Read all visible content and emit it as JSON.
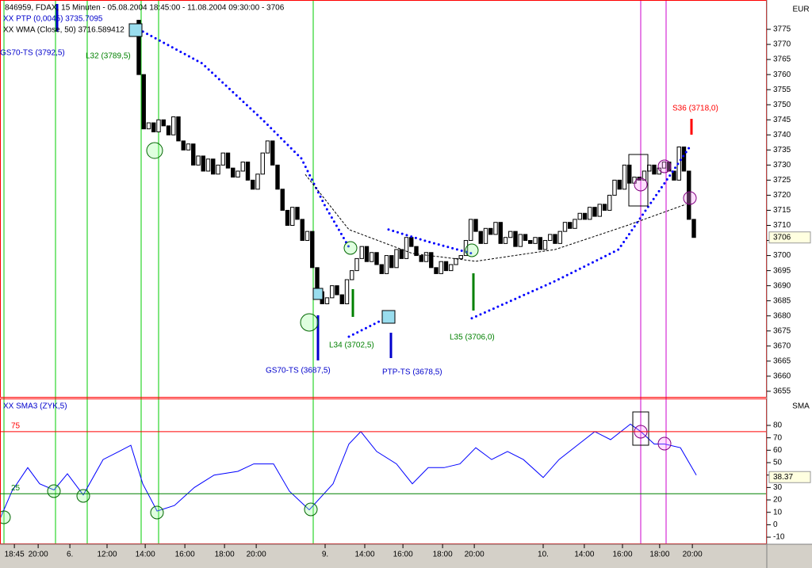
{
  "chart_data": [
    {
      "type": "candlestick",
      "title": "846959, FDAX, 15 Minuten - 05.08.2004 18:45:00 - 11.08.2004 09:30:00 - 3706",
      "legend": [
        {
          "text": "XX PTP (0,0045) 3735.7095",
          "color": "#0000cc"
        },
        {
          "text": "XX WMA (Close, 50) 3716.589412",
          "color": "#000000"
        }
      ],
      "axis_label": "EUR",
      "x": [
        28,
        29,
        30,
        31,
        32,
        33,
        34,
        35,
        36,
        37,
        38,
        39,
        40,
        41,
        42,
        43,
        44,
        45,
        46,
        47,
        48,
        49,
        50,
        51,
        52,
        53,
        54,
        55,
        56,
        57,
        58,
        59,
        60,
        61,
        62,
        63,
        64,
        65,
        66,
        67,
        68,
        69,
        70,
        71,
        72,
        73,
        74,
        75,
        76,
        77,
        78,
        79,
        80,
        81,
        82,
        83,
        84,
        85,
        86,
        87,
        88,
        89,
        90,
        91,
        92,
        93,
        94,
        95,
        96,
        97,
        98,
        99,
        100,
        101,
        102,
        103,
        104,
        105,
        106,
        107,
        108,
        109,
        110,
        111,
        112,
        113,
        114,
        115,
        116,
        117,
        118,
        119,
        120,
        121,
        122,
        123,
        124,
        125,
        126,
        127,
        128,
        129,
        130,
        131,
        132,
        133,
        134,
        135,
        136,
        137,
        138,
        139,
        140
      ],
      "open": [
        3778,
        3760,
        3742,
        3744,
        3741,
        3745,
        3743,
        3740,
        3746,
        3738,
        3735,
        3737,
        3730,
        3733,
        3728,
        3732,
        3727,
        3730,
        3734,
        3729,
        3726,
        3728,
        3731,
        3725,
        3722,
        3727,
        3734,
        3738,
        3730,
        3722,
        3715,
        3710,
        3716,
        3712,
        3705,
        3708,
        3696,
        3688,
        3684,
        3686,
        3690,
        3687,
        3684,
        3692,
        3695,
        3699,
        3703,
        3698,
        3701,
        3697,
        3694,
        3700,
        3696,
        3702,
        3699,
        3706,
        3703,
        3700,
        3698,
        3701,
        3696,
        3694,
        3698,
        3695,
        3697,
        3699,
        3700,
        3705,
        3712,
        3708,
        3704,
        3709,
        3707,
        3711,
        3704,
        3706,
        3708,
        3703,
        3707,
        3705,
        3704,
        3706,
        3702,
        3705,
        3707,
        3704,
        3708,
        3711,
        3709,
        3712,
        3714,
        3712,
        3716,
        3713,
        3717,
        3715,
        3720,
        3725,
        3722,
        3730,
        3724,
        3726,
        3725,
        3728,
        3730,
        3727,
        3729,
        3731,
        3728,
        3725,
        3736,
        3728,
        3712
      ],
      "close": [
        3760,
        3742,
        3744,
        3741,
        3745,
        3743,
        3740,
        3746,
        3738,
        3735,
        3737,
        3730,
        3733,
        3728,
        3732,
        3727,
        3730,
        3734,
        3729,
        3726,
        3728,
        3731,
        3725,
        3722,
        3727,
        3734,
        3738,
        3730,
        3722,
        3715,
        3710,
        3716,
        3712,
        3705,
        3708,
        3696,
        3688,
        3684,
        3686,
        3690,
        3687,
        3684,
        3692,
        3695,
        3699,
        3703,
        3698,
        3701,
        3697,
        3694,
        3700,
        3696,
        3702,
        3699,
        3706,
        3703,
        3700,
        3698,
        3701,
        3696,
        3694,
        3698,
        3695,
        3697,
        3699,
        3700,
        3705,
        3712,
        3708,
        3704,
        3709,
        3707,
        3711,
        3704,
        3706,
        3708,
        3703,
        3707,
        3705,
        3704,
        3706,
        3702,
        3705,
        3707,
        3704,
        3708,
        3711,
        3709,
        3712,
        3714,
        3712,
        3716,
        3713,
        3717,
        3715,
        3720,
        3725,
        3722,
        3730,
        3724,
        3726,
        3725,
        3728,
        3730,
        3727,
        3729,
        3731,
        3728,
        3725,
        3736,
        3728,
        3712,
        3706
      ],
      "series": [
        {
          "name": "PTP",
          "color": "#0000ff",
          "style": "dotted",
          "x": [
            28,
            40.8,
            52.8,
            60.8,
            65.6,
            70.4,
            null,
            70.4,
            78.4,
            null,
            78.4,
            86.4,
            95.2,
            null,
            95.2,
            112,
            124.8,
            139.2
          ],
          "values": [
            3775,
            3763.7,
            3745.3,
            3732.2,
            3716.4,
            3702.8,
            null,
            3673.1,
            3679.7,
            null,
            3708.6,
            3704.6,
            3700.7,
            null,
            3679.2,
            3691.5,
            3702.0,
            3736.1
          ]
        },
        {
          "name": "WMA",
          "color": "#000000",
          "style": "dashed",
          "x": [
            61.6,
            70.4,
            83.2,
            96,
            112,
            126.4,
            138.4
          ],
          "values": [
            3726.9,
            3708.6,
            3700.7,
            3698.1,
            3702.0,
            3709.9,
            3717.0
          ]
        }
      ],
      "annotations": [
        {
          "text": "GS70-TS (3792,5)",
          "color": "#0000cc"
        },
        {
          "text": "L32 (3789,5)",
          "color": "#008000"
        },
        {
          "text": "S36 (3718,0)",
          "color": "#ff0000"
        },
        {
          "text": "L34 (3702,5)",
          "color": "#008000"
        },
        {
          "text": "GS70-TS (3687,5)",
          "color": "#0000cc"
        },
        {
          "text": "PTP-TS (3678,5)",
          "color": "#0000cc"
        },
        {
          "text": "L35 (3706,0)",
          "color": "#008000"
        }
      ],
      "last_price": 3706,
      "xlim": [
        0,
        154.4
      ],
      "ylim": [
        3653.4,
        3784.2
      ],
      "yticks": [
        3655,
        3660,
        3665,
        3670,
        3675,
        3680,
        3685,
        3690,
        3695,
        3700,
        3705,
        3710,
        3715,
        3720,
        3725,
        3730,
        3735,
        3740,
        3745,
        3750,
        3755,
        3760,
        3765,
        3770,
        3775
      ]
    },
    {
      "type": "line",
      "title": "XX  SMA3 (ZYK,5)",
      "axis_label": "SMA",
      "series": [
        {
          "name": "SMA3",
          "color": "#0000ff",
          "x": [
            0,
            2.4,
            5.6,
            8,
            10.9,
            13.6,
            16.8,
            20.8,
            24,
            26.4,
            28.8,
            31.7,
            35.2,
            39.2,
            43.2,
            48,
            51.2,
            55.2,
            58.4,
            62.4,
            67.2,
            70.4,
            72.8,
            76,
            80,
            83.2,
            86.4,
            89.6,
            92.8,
            96,
            99.2,
            102.4,
            105.6,
            109.6,
            112.8,
            116.8,
            120,
            123.2,
            127.2,
            129.3,
            132,
            134.1,
            137.3,
            140.5
          ],
          "values": [
            4.7,
            27,
            46,
            33,
            28,
            41,
            24,
            52.5,
            59,
            64,
            33,
            11,
            15.5,
            30,
            40,
            43,
            49,
            49,
            27,
            12,
            33,
            65,
            75,
            59,
            49,
            33,
            46,
            46,
            49,
            62,
            52.5,
            59,
            52.5,
            38,
            52.5,
            65,
            75,
            68.5,
            81,
            75,
            65,
            65,
            62,
            40
          ]
        }
      ],
      "levels": [
        {
          "value": 75,
          "color": "#ff0000"
        },
        {
          "value": 25,
          "color": "#008000"
        }
      ],
      "last_value": 38.37,
      "xlim": [
        0,
        154.4
      ],
      "ylim": [
        -15.7,
        100.4
      ],
      "yticks": [
        -10,
        0,
        10,
        20,
        30,
        40,
        50,
        60,
        70,
        80
      ],
      "xticks": [
        {
          "value": 2.9,
          "label": "18:45"
        },
        {
          "value": 7.7,
          "label": "20:00"
        },
        {
          "value": 14.1,
          "label": "6."
        },
        {
          "value": 21.6,
          "label": "12:00"
        },
        {
          "value": 29.3,
          "label": "14:00"
        },
        {
          "value": 37.3,
          "label": "16:00"
        },
        {
          "value": 45.3,
          "label": "18:00"
        },
        {
          "value": 51.7,
          "label": "20:00"
        },
        {
          "value": 65.6,
          "label": "9."
        },
        {
          "value": 73.6,
          "label": "14:00"
        },
        {
          "value": 81.3,
          "label": "16:00"
        },
        {
          "value": 89.3,
          "label": "18:00"
        },
        {
          "value": 95.7,
          "label": "20:00"
        },
        {
          "value": 109.6,
          "label": "10."
        },
        {
          "value": 117.9,
          "label": "14:00"
        },
        {
          "value": 125.6,
          "label": "16:00"
        },
        {
          "value": 133.1,
          "label": "18:00"
        },
        {
          "value": 139.7,
          "label": "20:00"
        }
      ]
    }
  ]
}
